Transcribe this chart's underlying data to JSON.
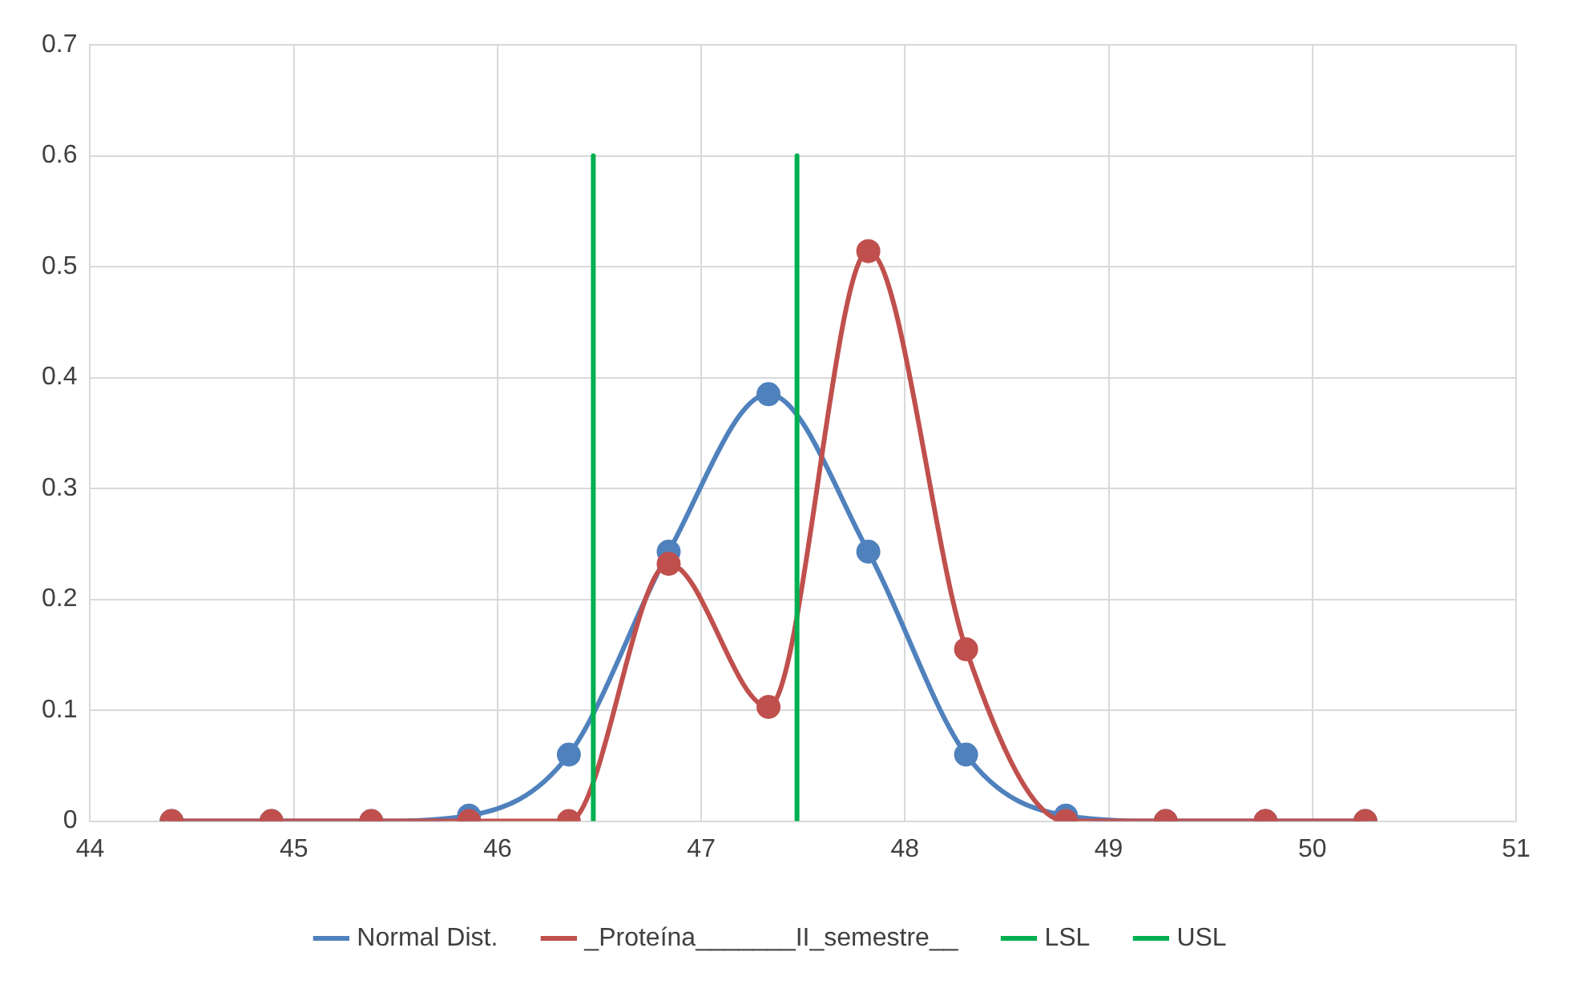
{
  "chart_data": {
    "type": "line",
    "xlim": [
      44,
      51
    ],
    "xticks": [
      44,
      45,
      46,
      47,
      48,
      49,
      50,
      51
    ],
    "ylim": [
      0,
      0.7
    ],
    "yticks": [
      0,
      0.1,
      0.2,
      0.3,
      0.4,
      0.5,
      0.6,
      0.7
    ],
    "grid": true,
    "legend": "bottom",
    "line_style": "solid",
    "series": [
      {
        "name": "Normal Dist.",
        "color": "#4f81bd",
        "marker": "circle",
        "x": [
          44.4,
          44.89,
          45.38,
          45.86,
          46.35,
          46.84,
          47.33,
          47.82,
          48.3,
          48.79,
          49.28,
          49.77,
          50.26
        ],
        "values": [
          0,
          0,
          0,
          0.005,
          0.06,
          0.243,
          0.385,
          0.243,
          0.06,
          0.005,
          0,
          0,
          0
        ]
      },
      {
        "name": "_Proteína_______II_semestre__",
        "color": "#c0504d",
        "marker": "circle",
        "x": [
          44.4,
          44.89,
          45.38,
          45.86,
          46.35,
          46.84,
          47.33,
          47.82,
          48.3,
          48.79,
          49.28,
          49.77,
          50.26
        ],
        "values": [
          0,
          0,
          0,
          0,
          0,
          0.232,
          0.103,
          0.514,
          0.155,
          0,
          0,
          0,
          0
        ]
      },
      {
        "name": "LSL",
        "color": "#00b050",
        "marker": "none",
        "x": [
          46.47,
          46.47
        ],
        "values": [
          0,
          0.6
        ]
      },
      {
        "name": "USL",
        "color": "#00b050",
        "marker": "none",
        "x": [
          47.47,
          47.47
        ],
        "values": [
          0,
          0.6
        ]
      }
    ]
  }
}
